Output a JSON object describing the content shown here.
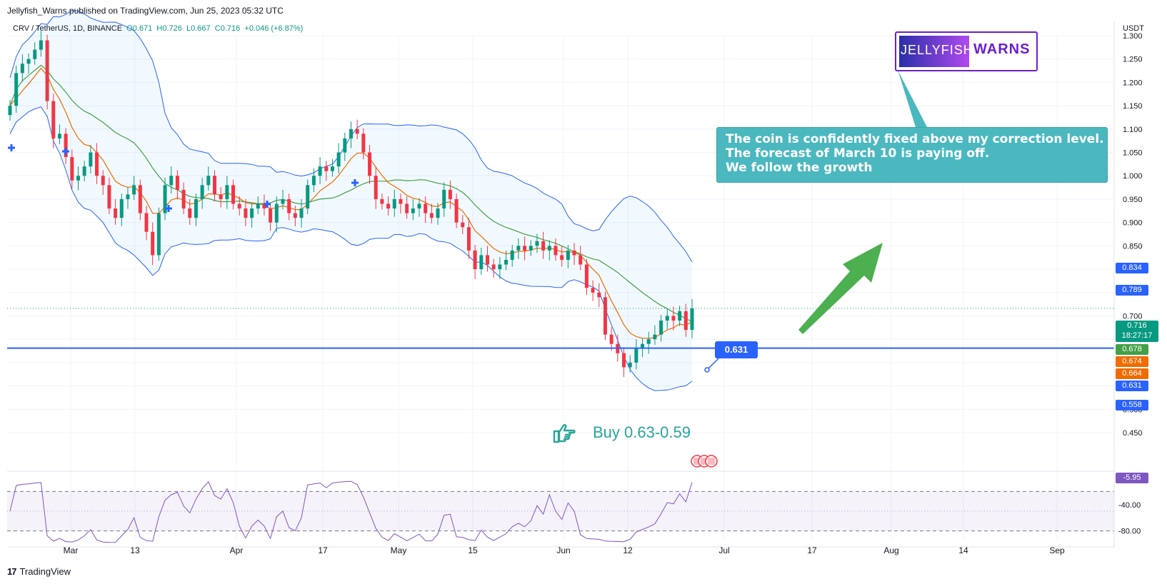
{
  "header": {
    "published": "Jellyfish_Warns published on TradingView.com, Jun 25, 2023 05:32 UTC",
    "symbol": "CRV / TetherUS, 1D, BINANCE",
    "open": "O0.671",
    "high": "H0.726",
    "low": "L0.667",
    "close": "C0.716",
    "change": "+0.046 (+6.87%)"
  },
  "currency": "USDT",
  "brand": "TradingView",
  "logo": {
    "left": "JELLYFISH",
    "right": "WARNS"
  },
  "callout": {
    "line1": "The coin is confidently fixed above my correction level.",
    "line2": "The forecast of March 10 is paying off.",
    "line3": "We follow the growth"
  },
  "buy_text": "Buy 0.63-0.59",
  "level_label": "0.631",
  "price_tags": {
    "bb_upper": "0.834",
    "bb_mid": "0.789",
    "last": "0.716",
    "countdown": "18:27:17",
    "ma_green": "0.678",
    "ma_orange": "0.674",
    "ma_orange2": "0.664",
    "level": "0.631",
    "bb_lower": "0.558",
    "rsi": "-5.95"
  },
  "colors": {
    "up": "#089981",
    "down": "#f23645",
    "level": "#2962ff",
    "bb": "#2962ff",
    "ma_green": "#43a047",
    "ma_orange": "#ef6c00",
    "arrow": "#4caf50",
    "rsi": "#7e57c2"
  },
  "chart_data": {
    "type": "candlestick",
    "y_ticks": [
      "1.300",
      "1.250",
      "1.200",
      "1.150",
      "1.100",
      "1.050",
      "1.000",
      "0.950",
      "0.900",
      "0.850",
      "0.800",
      "0.750",
      "0.700",
      "0.650",
      "0.600",
      "0.550",
      "0.500",
      "0.450"
    ],
    "x_ticks": [
      "Mar",
      "13",
      "Apr",
      "17",
      "May",
      "15",
      "Jun",
      "12",
      "Jul",
      "17",
      "Aug",
      "14",
      "Sep"
    ],
    "rsi_ticks": [
      "-40.00",
      "-80.00"
    ],
    "horizontal_level": 0.631,
    "last_price": 0.716,
    "close": [
      1.15,
      1.22,
      1.24,
      1.25,
      1.27,
      1.29,
      1.16,
      1.08,
      1.09,
      1.04,
      0.99,
      1.0,
      1.02,
      1.05,
      1.0,
      0.98,
      0.93,
      0.91,
      0.95,
      0.96,
      0.98,
      0.92,
      0.88,
      0.83,
      0.92,
      0.98,
      1.0,
      0.97,
      0.93,
      0.91,
      0.95,
      0.98,
      1.0,
      0.96,
      0.95,
      0.98,
      0.94,
      0.93,
      0.91,
      0.93,
      0.94,
      0.93,
      0.9,
      0.94,
      0.95,
      0.92,
      0.91,
      0.93,
      0.98,
      1.0,
      1.02,
      1.01,
      1.02,
      1.05,
      1.08,
      1.1,
      1.09,
      1.05,
      1.0,
      0.95,
      0.94,
      0.93,
      0.95,
      0.94,
      0.92,
      0.93,
      0.94,
      0.92,
      0.91,
      0.93,
      0.97,
      0.95,
      0.9,
      0.89,
      0.84,
      0.8,
      0.83,
      0.81,
      0.8,
      0.81,
      0.82,
      0.84,
      0.85,
      0.84,
      0.85,
      0.86,
      0.84,
      0.85,
      0.83,
      0.82,
      0.84,
      0.83,
      0.81,
      0.76,
      0.75,
      0.74,
      0.66,
      0.64,
      0.62,
      0.59,
      0.6,
      0.63,
      0.64,
      0.65,
      0.66,
      0.69,
      0.7,
      0.69,
      0.71,
      0.67,
      0.716
    ],
    "ma_green": [
      0.678
    ],
    "ma_orange": [
      0.674
    ],
    "bb_upper": 0.834,
    "bb_lower": 0.558,
    "rsi": -5.95
  }
}
